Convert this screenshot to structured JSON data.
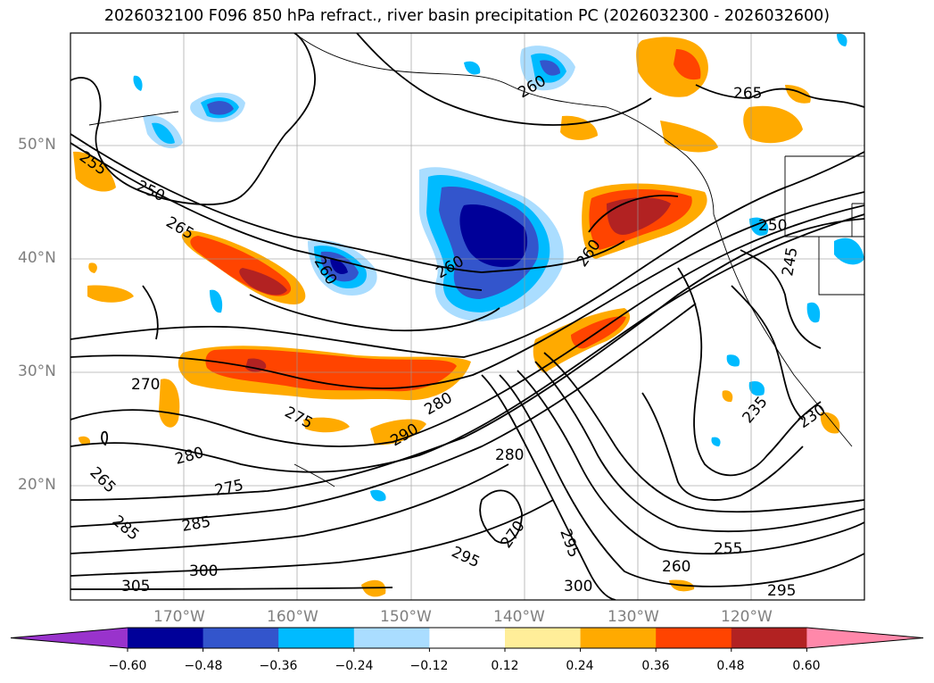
{
  "title": "2026032100 F096 850 hPa refract., river basin precipitation PC (2026032300 - 2026032600)",
  "lat_labels": [
    "50°N",
    "40°N",
    "30°N",
    "20°N"
  ],
  "lon_labels": [
    "170°W",
    "160°W",
    "150°W",
    "140°W",
    "130°W",
    "120°W"
  ],
  "colorbar": {
    "ticks": [
      "−0.60",
      "−0.48",
      "−0.36",
      "−0.24",
      "−0.12",
      "0.12",
      "0.24",
      "0.36",
      "0.48",
      "0.60"
    ],
    "colors": [
      "#9933cc",
      "#000099",
      "#3355cc",
      "#00bbff",
      "#aaddff",
      "#ffffff",
      "#ffee99",
      "#ffaa00",
      "#ff4400",
      "#b22222",
      "#ff88aa"
    ]
  },
  "contour_labels": [
    "250",
    "255",
    "260",
    "265",
    "270",
    "275",
    "280",
    "285",
    "290",
    "295",
    "300",
    "305",
    "230",
    "235",
    "245"
  ]
}
